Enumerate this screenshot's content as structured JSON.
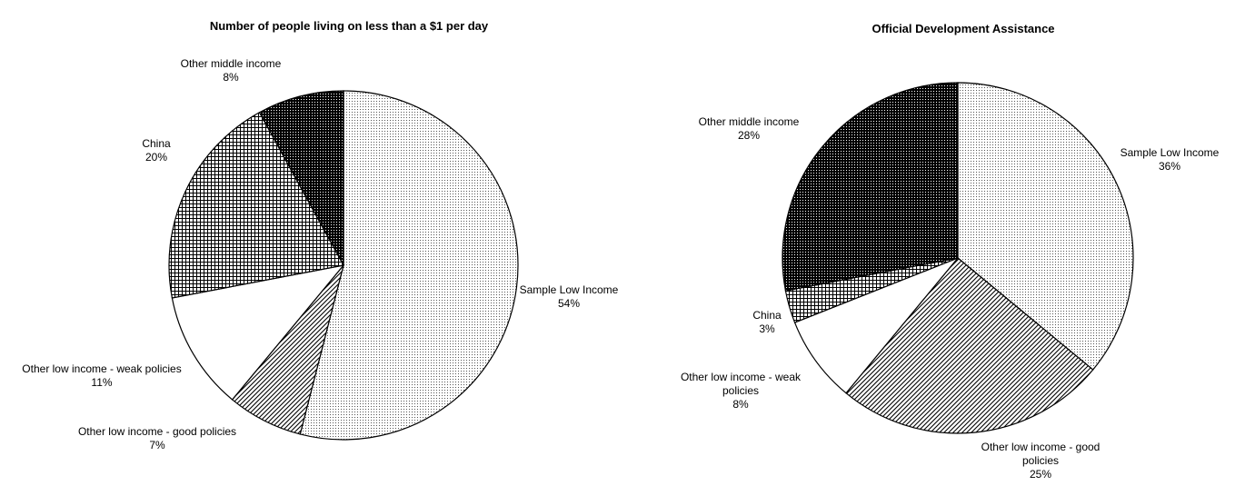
{
  "chart_data": [
    {
      "type": "pie",
      "title": "Number of people living on less than a $1 per day",
      "slices": [
        {
          "name": "Sample Low Income",
          "value": 54,
          "label": [
            "Sample Low Income"
          ],
          "pct": "54%",
          "fill": "dots"
        },
        {
          "name": "Other low income - good policies",
          "value": 7,
          "label": [
            "Other low income - good policies"
          ],
          "pct": "7%",
          "fill": "diag"
        },
        {
          "name": "Other low income - weak policies",
          "value": 11,
          "label": [
            "Other low income - weak policies"
          ],
          "pct": "11%",
          "fill": "white"
        },
        {
          "name": "China",
          "value": 20,
          "label": [
            "China"
          ],
          "pct": "20%",
          "fill": "grid"
        },
        {
          "name": "Other middle income",
          "value": 8,
          "label": [
            "Other middle income"
          ],
          "pct": "8%",
          "fill": "dark"
        }
      ]
    },
    {
      "type": "pie",
      "title": "Official Development Assistance",
      "slices": [
        {
          "name": "Sample Low Income",
          "value": 36,
          "label": [
            "Sample Low Income"
          ],
          "pct": "36%",
          "fill": "dots"
        },
        {
          "name": "Other low income - good policies",
          "value": 25,
          "label": [
            "Other low income - good",
            "policies"
          ],
          "pct": "25%",
          "fill": "diag"
        },
        {
          "name": "Other low income - weak policies",
          "value": 8,
          "label": [
            "Other low income - weak",
            "policies"
          ],
          "pct": "8%",
          "fill": "white"
        },
        {
          "name": "China",
          "value": 3,
          "label": [
            "China"
          ],
          "pct": "3%",
          "fill": "grid"
        },
        {
          "name": "Other middle income",
          "value": 28,
          "label": [
            "Other middle income"
          ],
          "pct": "28%",
          "fill": "dark"
        }
      ]
    }
  ]
}
